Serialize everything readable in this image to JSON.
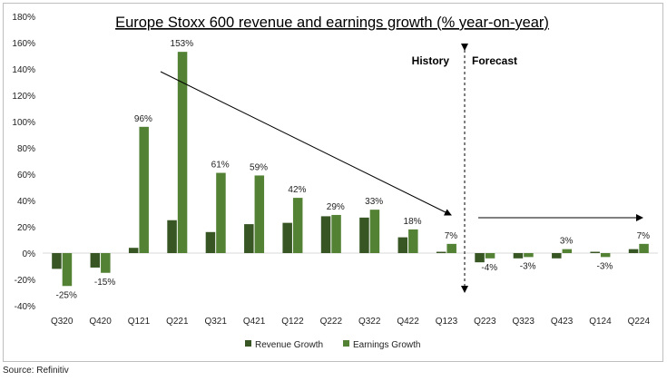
{
  "chart_data": {
    "type": "bar",
    "title": "Europe Stoxx 600 revenue and earnings growth (% year-on-year)",
    "categories": [
      "Q320",
      "Q420",
      "Q121",
      "Q221",
      "Q321",
      "Q421",
      "Q122",
      "Q222",
      "Q322",
      "Q422",
      "Q123",
      "Q223",
      "Q323",
      "Q423",
      "Q124",
      "Q224"
    ],
    "series": [
      {
        "name": "Revenue Growth",
        "color": "#375623",
        "values": [
          -12,
          -11,
          4,
          25,
          16,
          22,
          23,
          28,
          27,
          12,
          1,
          -7,
          -4,
          -4,
          1,
          3
        ]
      },
      {
        "name": "Earnings Growth",
        "color": "#548235",
        "values": [
          -25,
          -15,
          96,
          153,
          61,
          59,
          42,
          29,
          33,
          18,
          7,
          -4,
          -3,
          3,
          -3,
          7
        ]
      }
    ],
    "data_labels": [
      "-25%",
      "-15%",
      "96%",
      "153%",
      "61%",
      "59%",
      "42%",
      "29%",
      "33%",
      "18%",
      "7%",
      "-4%",
      "-3%",
      "3%",
      "-3%",
      "7%"
    ],
    "ylim": [
      -40,
      180
    ],
    "yticks": [
      "-40%",
      "-20%",
      "0%",
      "20%",
      "40%",
      "60%",
      "80%",
      "100%",
      "120%",
      "140%",
      "160%",
      "180%"
    ],
    "annotations": {
      "history": "History",
      "forecast": "Forecast"
    },
    "legend_position": "bottom",
    "grid": false
  },
  "source": "Source: Refinitiv"
}
